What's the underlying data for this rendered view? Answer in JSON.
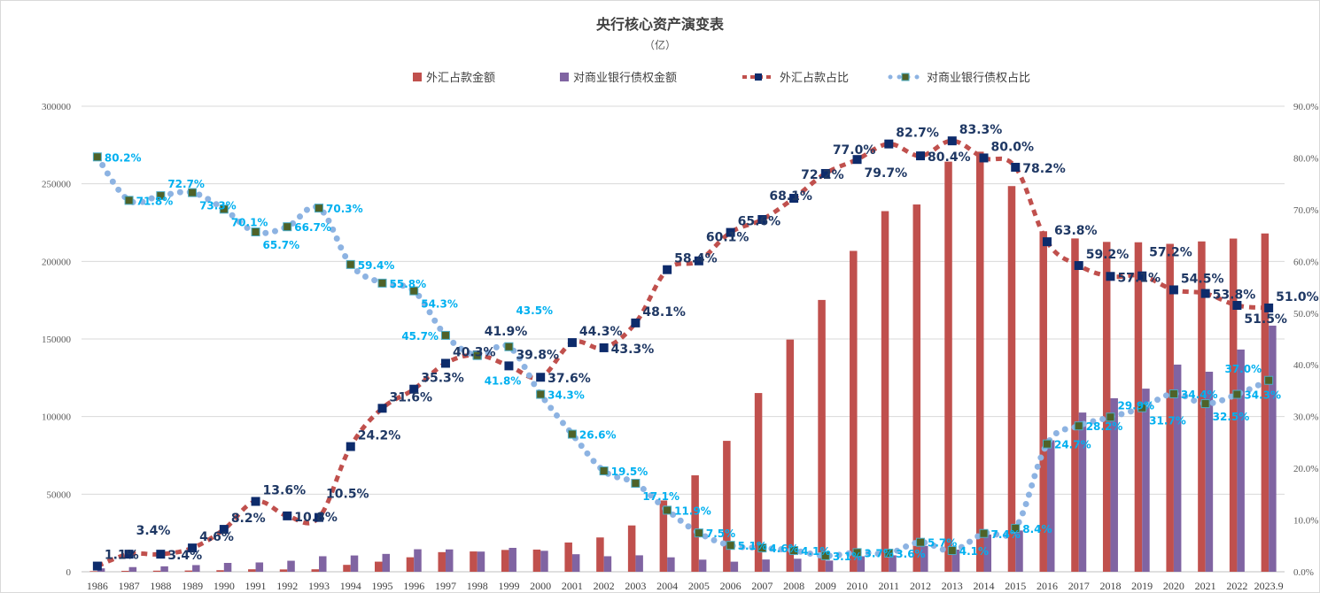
{
  "chart_data": {
    "type": "bar",
    "title": "央行核心资产演变表",
    "subtitle": "（亿）",
    "categories": [
      "1986",
      "1987",
      "1988",
      "1989",
      "1990",
      "1991",
      "1992",
      "1993",
      "1994",
      "1995",
      "1996",
      "1997",
      "1998",
      "1999",
      "2000",
      "2001",
      "2002",
      "2003",
      "2004",
      "2005",
      "2006",
      "2007",
      "2008",
      "2009",
      "2010",
      "2011",
      "2012",
      "2013",
      "2014",
      "2015",
      "2016",
      "2017",
      "2018",
      "2019",
      "2020",
      "2021",
      "2022",
      "2023.9"
    ],
    "left_axis": {
      "ylim": [
        0,
        300000
      ],
      "ticks": [
        "0",
        "50000",
        "100000",
        "150000",
        "200000",
        "250000",
        "300000"
      ]
    },
    "right_axis": {
      "ylim": [
        0,
        90
      ],
      "ticks": [
        "0.0%",
        "10.0%",
        "20.0%",
        "30.0%",
        "40.0%",
        "50.0%",
        "60.0%",
        "70.0%",
        "80.0%",
        "90.0%"
      ]
    },
    "legend_position": "top",
    "grid": true,
    "colors": {
      "fx_bar": "#c0504d",
      "claims_bar": "#8064a2",
      "fx_line": "#c0504d",
      "fx_marker": "#0d2b6b",
      "claims_line": "#8db3e2",
      "claims_marker": "#4f6228",
      "claims_marker_border": "#4bacc6",
      "fx_label": "#1f3864",
      "claims_label": "#00b0f0"
    },
    "series": [
      {
        "name": "外汇占款金额",
        "type": "bar",
        "axis": "left",
        "values": [
          400,
          600,
          700,
          800,
          1000,
          1600,
          1500,
          1600,
          4451,
          6511,
          9330,
          12649,
          13088,
          14061,
          14291,
          18850,
          22107,
          29842,
          45940,
          62140,
          84361,
          115169,
          149624,
          175155,
          206767,
          232389,
          236670,
          264270,
          270681,
          248538,
          219425,
          214788,
          212557,
          212317,
          211308,
          212867,
          214712,
          218000
        ]
      },
      {
        "name": "对商业银行债权金额",
        "type": "bar",
        "axis": "left",
        "values": [
          2200,
          3000,
          3500,
          4300,
          5700,
          6000,
          7100,
          10000,
          10500,
          11500,
          14500,
          14400,
          13000,
          15400,
          13500,
          11300,
          10000,
          10600,
          9300,
          7800,
          6500,
          7900,
          8400,
          7200,
          10000,
          10600,
          16700,
          14300,
          24000,
          26600,
          84700,
          102600,
          111800,
          118000,
          133500,
          128900,
          143200,
          158600
        ]
      },
      {
        "name": "外汇占款占比",
        "type": "line",
        "axis": "right",
        "values": [
          1.1,
          3.4,
          3.4,
          4.6,
          8.2,
          13.6,
          10.8,
          10.5,
          24.2,
          31.6,
          35.3,
          40.3,
          41.9,
          39.8,
          37.6,
          44.3,
          43.3,
          48.1,
          58.4,
          60.1,
          65.6,
          68.1,
          72.2,
          77.0,
          79.7,
          82.7,
          80.4,
          83.3,
          80.0,
          78.2,
          63.8,
          59.2,
          57.1,
          57.2,
          54.5,
          53.8,
          51.5,
          51.0
        ],
        "labels": [
          "1.1%",
          "3.4%",
          "3.4%",
          "4.6%",
          "8.2%",
          "13.6%",
          "10.8%",
          "10.5%",
          "24.2%",
          "31.6%",
          "35.3%",
          "40.3%",
          "41.9%",
          "39.8%",
          "37.6%",
          "44.3%",
          "43.3%",
          "48.1%",
          "58.4%",
          "60.1%",
          "65.6%",
          "68.1%",
          "72.2%",
          "77.0%",
          "79.7%",
          "82.7%",
          "80.4%",
          "83.3%",
          "80.0%",
          "78.2%",
          "63.8%",
          "59.2%",
          "57.1%",
          "57.2%",
          "54.5%",
          "53.8%",
          "51.5%",
          "51.0%"
        ]
      },
      {
        "name": "对商业银行债权占比",
        "type": "line",
        "axis": "right",
        "values": [
          80.2,
          71.8,
          72.7,
          73.3,
          70.1,
          65.7,
          66.7,
          70.3,
          59.4,
          55.8,
          54.3,
          45.7,
          41.8,
          43.5,
          34.3,
          26.6,
          19.5,
          17.1,
          11.9,
          7.5,
          5.1,
          4.6,
          4.1,
          3.1,
          3.7,
          3.6,
          5.7,
          4.1,
          7.4,
          8.4,
          24.7,
          28.2,
          29.9,
          31.7,
          34.4,
          32.5,
          34.3,
          37.0
        ],
        "labels": [
          "80.2%",
          "71.8%",
          "72.7%",
          "73.3%",
          "70.1%",
          "65.7%",
          "66.7%",
          "70.3%",
          "59.4%",
          "55.8%",
          "54.3%",
          "45.7%",
          "41.8%",
          "43.5%",
          "34.3%",
          "26.6%",
          "19.5%",
          "17.1%",
          "11.9%",
          "7.5%",
          "5.1%",
          "4.6%",
          "4.1%",
          "3.1%",
          "3.7%",
          "3.6%",
          "5.7%",
          "4.1%",
          "7.4%",
          "8.4%",
          "24.7%",
          "28.2%",
          "29.9%",
          "31.7%",
          "34.4%",
          "32.5%",
          "34.3%",
          "37.0%"
        ]
      }
    ]
  }
}
